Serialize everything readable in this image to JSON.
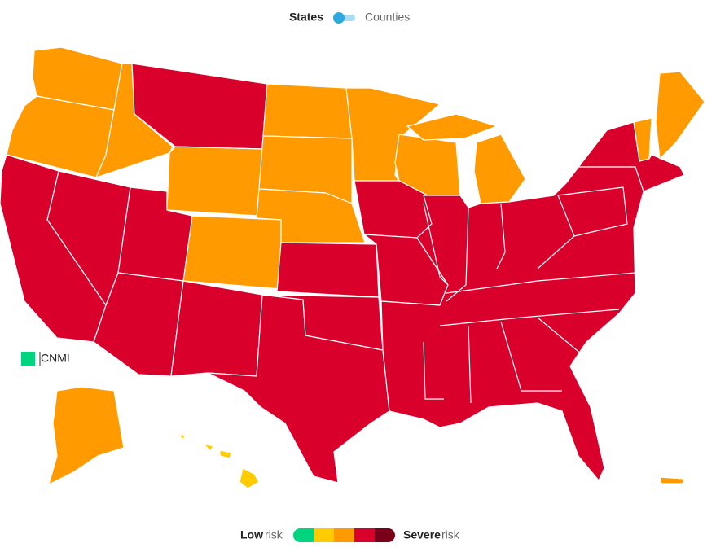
{
  "toggle": {
    "active": "States",
    "inactive": "Counties"
  },
  "territory_label": "CNMI",
  "legend": {
    "low": "Low",
    "low_suffix": "risk",
    "high": "Severe",
    "high_suffix": "risk",
    "colors": [
      "#00d47f",
      "#ffcc00",
      "#ff9b00",
      "#d9002b",
      "#7a0019"
    ]
  }
}
